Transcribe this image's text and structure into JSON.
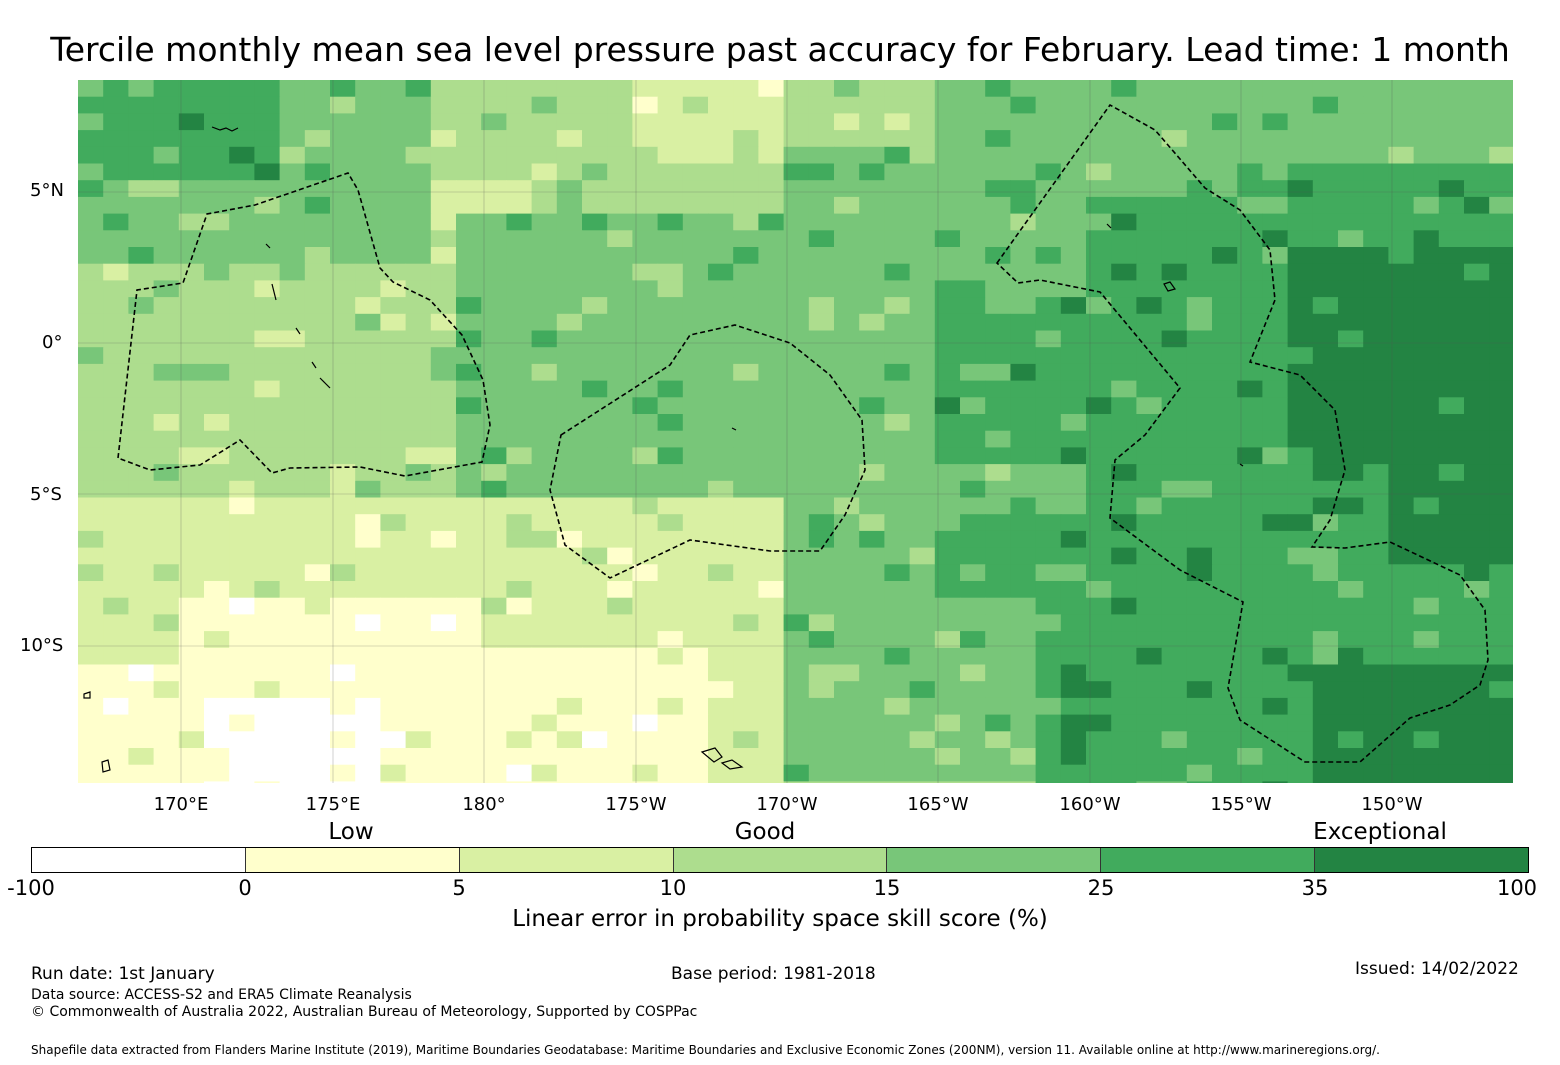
{
  "title": "Tercile monthly mean sea level pressure past accuracy for February. Lead time: 1 month",
  "map": {
    "lat_labels": [
      "5°N",
      "0°",
      "5°S",
      "10°S"
    ],
    "lon_labels": [
      "170°E",
      "175°E",
      "180°",
      "175°W",
      "170°W",
      "165°W",
      "160°W",
      "155°W",
      "150°W"
    ],
    "extent": {
      "lon_min": 166.6,
      "lon_max": 213.9,
      "lat_min": -14.0,
      "lat_max": 8.6
    },
    "cell_size_deg": 0.83
  },
  "legend": {
    "category_labels": [
      "Low",
      "Good",
      "Exceptional"
    ],
    "tick_labels": [
      "-100",
      "0",
      "5",
      "10",
      "15",
      "25",
      "35",
      "100"
    ],
    "colors": [
      "#ffffff",
      "#ffffcc",
      "#d9f0a3",
      "#addd8e",
      "#78c679",
      "#41ab5d",
      "#238443"
    ],
    "axis_label": "Linear error in probability space skill score (%)"
  },
  "footer": {
    "run_date": "Run date: 1st January",
    "base_period": "Base period: 1981-2018",
    "issued": "Issued: 14/02/2022",
    "data_source": "Data source: ACCESS-S2 and ERA5 Climate Reanalysis",
    "copyright": "© Commonwealth of Australia 2022, Australian Bureau of Meteorology, Supported by COSPPac",
    "shapefile": "Shapefile data extracted from Flanders Marine Institute (2019), Maritime Boundaries Geodatabase: Maritime Boundaries and Exclusive Economic Zones (200NM), version 11. Available online at http://www.marineregions.org/."
  }
}
